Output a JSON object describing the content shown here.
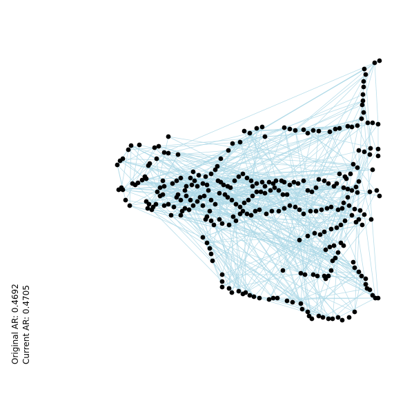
{
  "canvas": {
    "background": "#ffffff",
    "edge_color": "#add8e6",
    "node_color": "#000000"
  },
  "labels": {
    "original_ar": "Original AR:   0.4692",
    "current_ar": "Current  AR:   0.4705"
  }
}
